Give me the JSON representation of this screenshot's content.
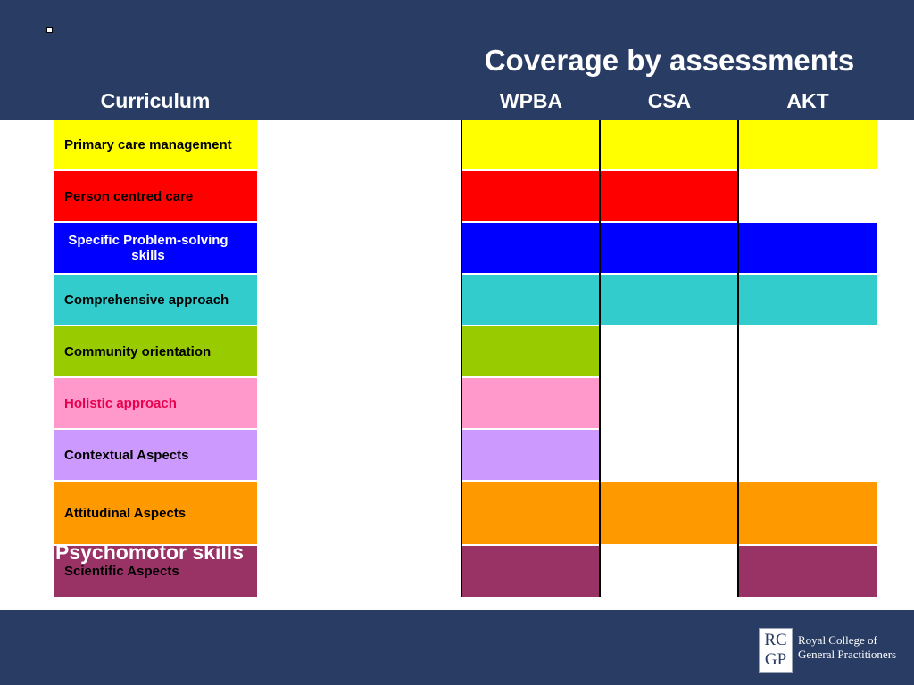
{
  "slide": {
    "title": "Coverage by assessments",
    "bullet_marker": "-"
  },
  "headers": {
    "curriculum": "Curriculum",
    "columns": [
      "WPBA",
      "CSA",
      "AKT"
    ]
  },
  "rows": [
    {
      "label": "Primary care management",
      "color": "#ffff00",
      "coverage": [
        true,
        true,
        true
      ]
    },
    {
      "label": "Person centred care",
      "color": "#ff0000",
      "coverage": [
        true,
        true,
        false
      ]
    },
    {
      "label": "Specific Problem-solving skills",
      "color": "#0000ff",
      "coverage": [
        true,
        true,
        true
      ]
    },
    {
      "label": "Comprehensive approach",
      "color": "#33cccc",
      "coverage": [
        true,
        true,
        true
      ]
    },
    {
      "label": "Community orientation",
      "color": "#99cc00",
      "coverage": [
        true,
        false,
        false
      ]
    },
    {
      "label": "Holistic approach",
      "color": "#ff99cc",
      "coverage": [
        true,
        false,
        false
      ],
      "style": "hyperlink"
    },
    {
      "label": "Contextual Aspects",
      "color": "#cc99ff",
      "coverage": [
        true,
        false,
        false
      ]
    },
    {
      "label": "Attitudinal Aspects",
      "color": "#ff9900",
      "coverage": [
        true,
        true,
        true
      ]
    },
    {
      "label": "Scientific Aspects",
      "color": "#993366",
      "coverage": [
        true,
        false,
        true
      ]
    }
  ],
  "overlay_text": "Psychomotor skills",
  "logo": {
    "monogram_top": "RC",
    "monogram_bottom": "GP",
    "line1": "Royal College of",
    "line2": "General Practitioners"
  },
  "colors": {
    "band": "#283c64",
    "hyperlink": "#e8004c"
  }
}
